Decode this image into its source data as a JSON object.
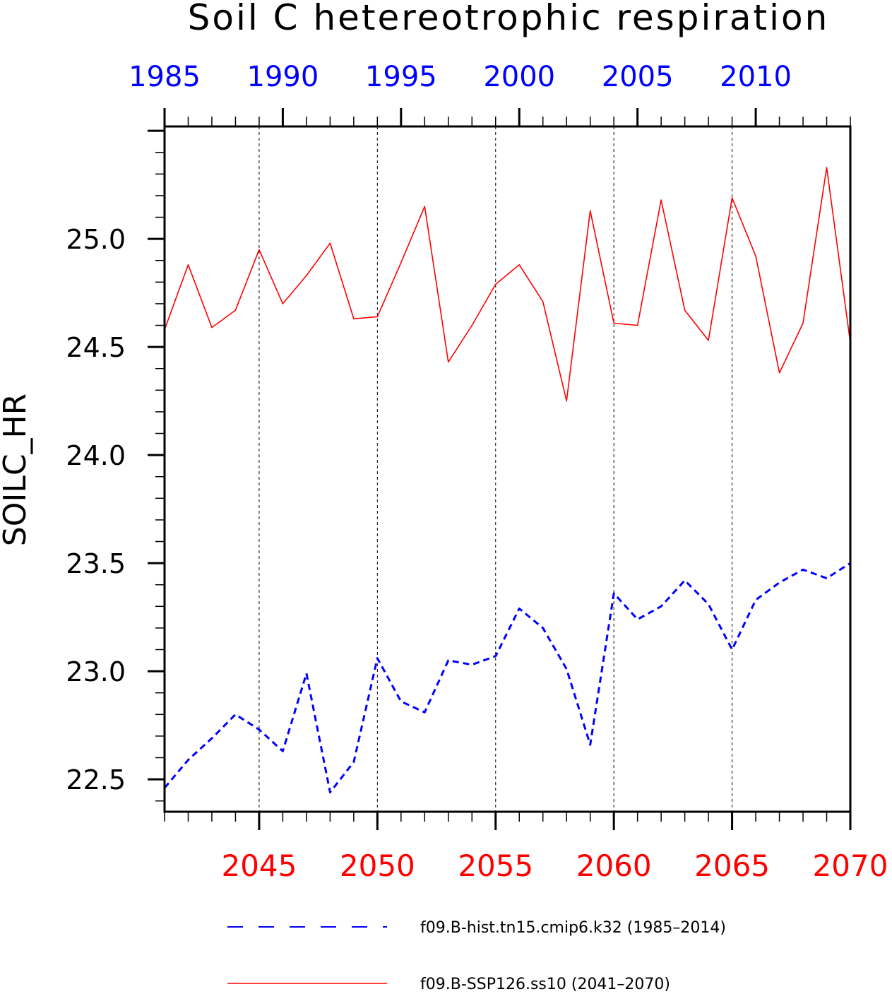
{
  "chart_data": {
    "type": "line",
    "title": "Soil C hetereotrophic respiration",
    "ylabel": "SOILC_HR",
    "ylim": [
      22.35,
      25.52
    ],
    "yticks": [
      22.5,
      23.0,
      23.5,
      24.0,
      24.5,
      25.0
    ],
    "ytick_labels": [
      "22.5",
      "23.0",
      "23.5",
      "24.0",
      "24.5",
      "25.0"
    ],
    "x_bottom": {
      "range": [
        2041,
        2070
      ],
      "ticks": [
        2045,
        2050,
        2055,
        2060,
        2065,
        2070
      ],
      "tick_labels": [
        "2045",
        "2050",
        "2055",
        "2060",
        "2065",
        "2070"
      ],
      "color": "#ff0000"
    },
    "x_top": {
      "range": [
        1985,
        2014
      ],
      "ticks": [
        1985,
        1990,
        1995,
        2000,
        2005,
        2010
      ],
      "tick_labels": [
        "1985",
        "1990",
        "1995",
        "2000",
        "2005",
        "2010"
      ],
      "color": "#0000ff"
    },
    "grid": "vertical dashed at bottom-axis major ticks",
    "legend_position": "bottom",
    "series": [
      {
        "name": "f09.B-hist.tn15.cmip6.k32 (1985–2014)",
        "axis": "top",
        "color": "#0000ff",
        "dash": "dashed",
        "x": [
          1985,
          1986,
          1987,
          1988,
          1989,
          1990,
          1991,
          1992,
          1993,
          1994,
          1995,
          1996,
          1997,
          1998,
          1999,
          2000,
          2001,
          2002,
          2003,
          2004,
          2005,
          2006,
          2007,
          2008,
          2009,
          2010,
          2011,
          2012,
          2013,
          2014
        ],
        "values": [
          22.46,
          22.59,
          22.69,
          22.8,
          22.73,
          22.63,
          22.99,
          22.44,
          22.58,
          23.06,
          22.86,
          22.81,
          23.05,
          23.03,
          23.07,
          23.29,
          23.2,
          23.01,
          22.66,
          23.36,
          23.24,
          23.3,
          23.42,
          23.31,
          23.1,
          23.33,
          23.41,
          23.47,
          23.43,
          23.5
        ]
      },
      {
        "name": "f09.B-SSP126.ss10 (2041–2070)",
        "axis": "bottom",
        "color": "#ff0000",
        "dash": "solid",
        "x": [
          2041,
          2042,
          2043,
          2044,
          2045,
          2046,
          2047,
          2048,
          2049,
          2050,
          2051,
          2052,
          2053,
          2054,
          2055,
          2056,
          2057,
          2058,
          2059,
          2060,
          2061,
          2062,
          2063,
          2064,
          2065,
          2066,
          2067,
          2068,
          2069,
          2070
        ],
        "values": [
          24.58,
          24.88,
          24.59,
          24.67,
          24.95,
          24.7,
          24.83,
          24.98,
          24.63,
          24.64,
          24.89,
          25.15,
          24.43,
          24.6,
          24.79,
          24.88,
          24.71,
          24.25,
          25.13,
          24.61,
          24.6,
          25.18,
          24.67,
          24.53,
          25.19,
          24.92,
          24.38,
          24.61,
          25.33,
          24.52
        ]
      }
    ]
  }
}
